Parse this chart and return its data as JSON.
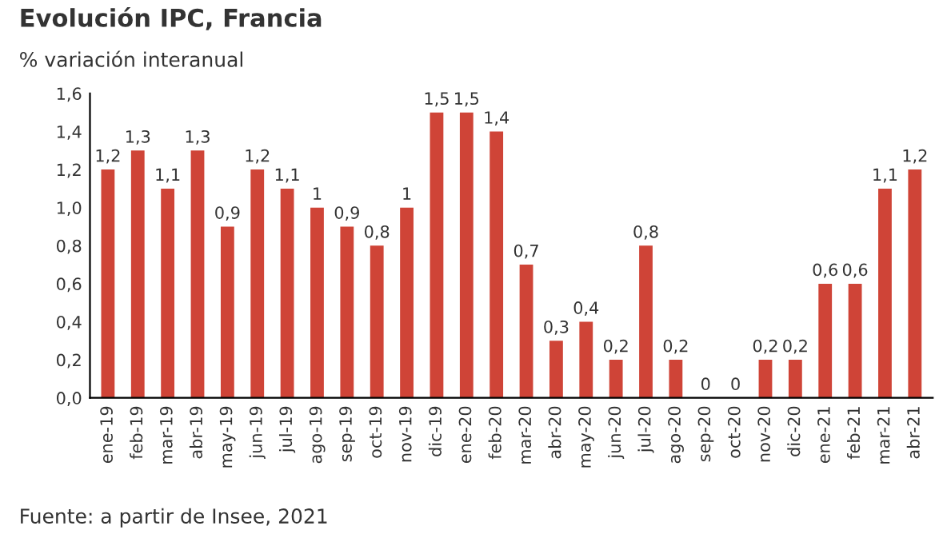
{
  "chart_data": {
    "type": "bar",
    "title": "Evolución IPC, Francia",
    "subtitle": "% variación interanual",
    "categories": [
      "ene-19",
      "feb-19",
      "mar-19",
      "abr-19",
      "may-19",
      "jun-19",
      "jul-19",
      "ago-19",
      "sep-19",
      "oct-19",
      "nov-19",
      "dic-19",
      "ene-20",
      "feb-20",
      "mar-20",
      "abr-20",
      "may-20",
      "jun-20",
      "jul-20",
      "ago-20",
      "sep-20",
      "oct-20",
      "nov-20",
      "dic-20",
      "ene-21",
      "feb-21",
      "mar-21",
      "abr-21"
    ],
    "values": [
      1.2,
      1.3,
      1.1,
      1.3,
      0.9,
      1.2,
      1.1,
      1.0,
      0.9,
      0.8,
      1.0,
      1.5,
      1.5,
      1.4,
      0.7,
      0.3,
      0.4,
      0.2,
      0.8,
      0.2,
      0,
      0,
      0.2,
      0.2,
      0.6,
      0.6,
      1.1,
      1.2
    ],
    "value_labels": [
      "1,2",
      "1,3",
      "1,1",
      "1,3",
      "0,9",
      "1,2",
      "1,1",
      "1",
      "0,9",
      "0,8",
      "1",
      "1,5",
      "1,5",
      "1,4",
      "0,7",
      "0,3",
      "0,4",
      "0,2",
      "0,8",
      "0,2",
      "0",
      "0",
      "0,2",
      "0,2",
      "0,6",
      "0,6",
      "1,1",
      "1,2"
    ],
    "color": "#cf4437",
    "ylim": [
      0,
      1.6
    ],
    "yticks": [
      {
        "value": 0,
        "label": "0,0"
      },
      {
        "value": 0.2,
        "label": "0,2"
      },
      {
        "value": 0.4,
        "label": "0,4"
      },
      {
        "value": 0.6,
        "label": "0,6"
      },
      {
        "value": 0.8,
        "label": "0,8"
      },
      {
        "value": 1.0,
        "label": "1,0"
      },
      {
        "value": 1.2,
        "label": "1,2"
      },
      {
        "value": 1.4,
        "label": "1,4"
      },
      {
        "value": 1.6,
        "label": "1,6"
      }
    ],
    "grid": false,
    "annotations": [
      "Fuente: a partir de Insee, 2021"
    ]
  }
}
